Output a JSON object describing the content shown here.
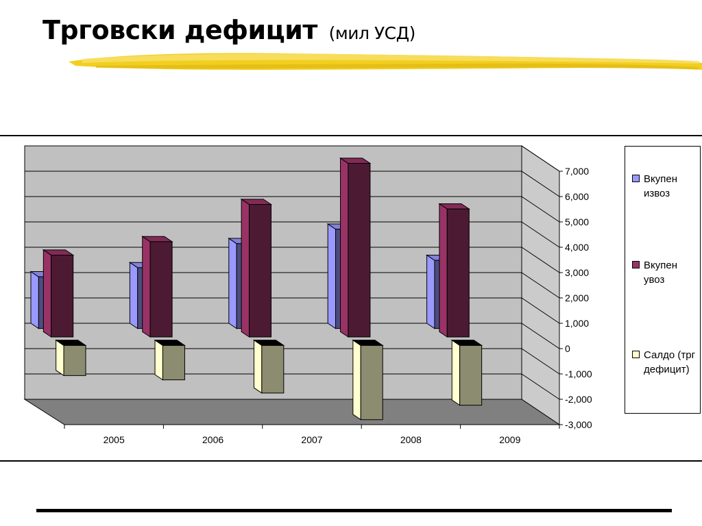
{
  "slide": {
    "title": "Трговски дефицит",
    "subtitle": "(мил УСД)"
  },
  "chart_data": {
    "type": "bar",
    "style": "3d clustered column",
    "categories": [
      "2005",
      "2006",
      "2007",
      "2008",
      "2009"
    ],
    "series": [
      {
        "name": "Вкупен извоз",
        "values": [
          2040,
          2400,
          3350,
          3920,
          2690
        ],
        "color": "#9999ff"
      },
      {
        "name": "Вкупен увоз",
        "values": [
          3230,
          3760,
          5230,
          6850,
          5050
        ],
        "color": "#993366"
      },
      {
        "name": "Салдо (трг дефицит)",
        "values": [
          -1190,
          -1360,
          -1880,
          -2930,
          -2360
        ],
        "color": "#ffffcc"
      }
    ],
    "ylim": [
      -3000,
      7000
    ],
    "yticks": [
      "7,000",
      "6,000",
      "5,000",
      "4,000",
      "3,000",
      "2,000",
      "1,000",
      "0",
      "-1,000",
      "-2,000",
      "-3,000"
    ],
    "grid": true,
    "legend_position": "right",
    "wall_color": "#c0c0c0",
    "floor_color": "#808080"
  }
}
